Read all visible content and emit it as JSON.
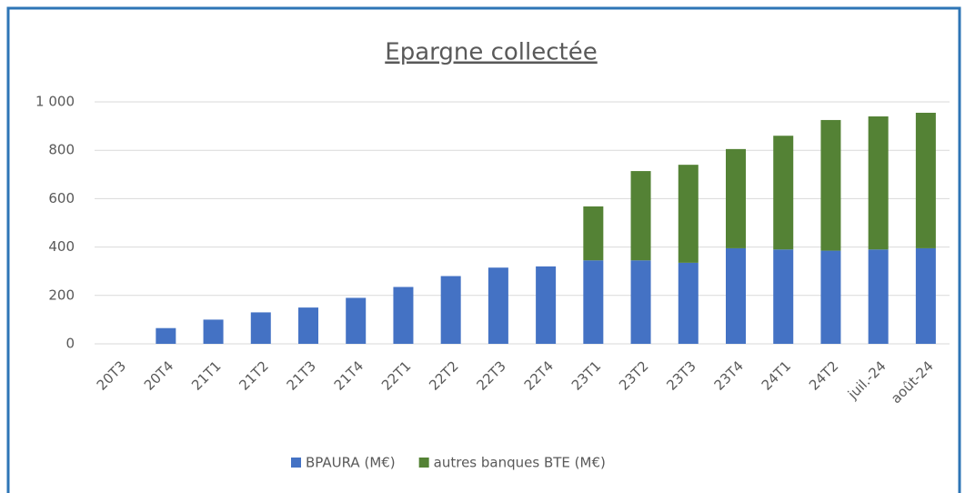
{
  "chart_data": {
    "type": "stacked_bar",
    "title": "Epargne collectée",
    "categories": [
      "20T3",
      "20T4",
      "21T1",
      "21T2",
      "21T3",
      "21T4",
      "22T1",
      "22T2",
      "22T3",
      "22T4",
      "23T1",
      "23T2",
      "23T3",
      "23T4",
      "24T1",
      "24T2",
      "juil.-24",
      "août-24"
    ],
    "series": [
      {
        "name": "BPAURA (M€)",
        "color": "#4472c4",
        "values": [
          null,
          65,
          100,
          130,
          150,
          190,
          235,
          280,
          315,
          320,
          345,
          345,
          335,
          395,
          390,
          385,
          390,
          395
        ]
      },
      {
        "name": "autres banques BTE (M€)",
        "color": "#548235",
        "values": [
          null,
          null,
          null,
          null,
          null,
          null,
          null,
          null,
          null,
          null,
          223,
          369,
          405,
          410,
          470,
          540,
          550,
          560
        ]
      }
    ],
    "ylim": [
      0,
      1000
    ],
    "yticks": [
      0,
      200,
      400,
      600,
      800,
      {
        "value": 1000,
        "label": "1 000"
      }
    ],
    "grid": true,
    "legend": "bottom"
  }
}
